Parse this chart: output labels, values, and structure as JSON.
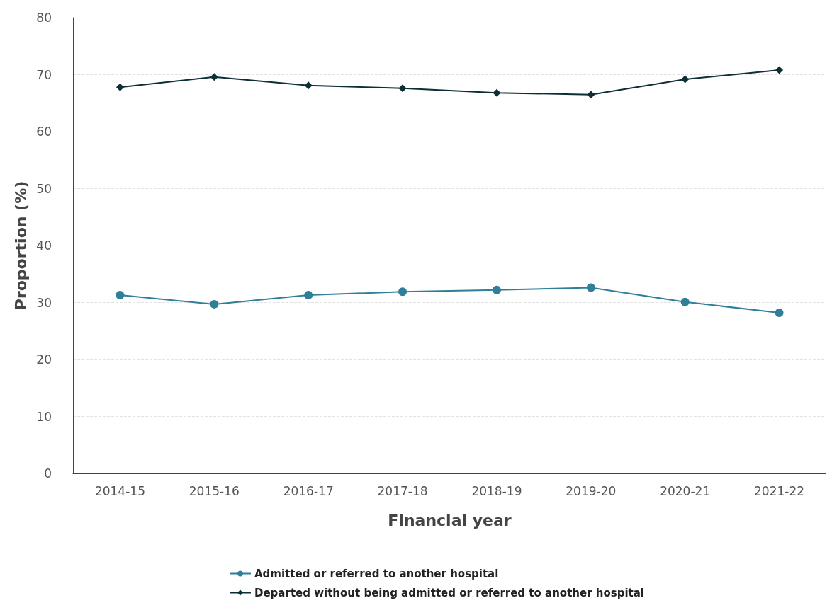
{
  "chart_data": {
    "type": "line",
    "xlabel": "Financial year",
    "ylabel": "Proportion (%)",
    "categories": [
      "2014-15",
      "2015-16",
      "2016-17",
      "2017-18",
      "2018-19",
      "2019-20",
      "2020-21",
      "2021-22"
    ],
    "series": [
      {
        "name": "Admitted or referred to another hospital",
        "color": "#2e7f97",
        "marker": "circle",
        "values": [
          31.3,
          29.7,
          31.3,
          31.9,
          32.2,
          32.6,
          30.1,
          28.2
        ]
      },
      {
        "name": "Departed without being admitted or referred to another hospital",
        "color": "#0d2e35",
        "marker": "diamond",
        "values": [
          67.8,
          69.6,
          68.1,
          67.6,
          66.8,
          66.5,
          69.2,
          70.8
        ]
      }
    ],
    "ylim": [
      0,
      80
    ],
    "yticks": [
      0,
      10,
      20,
      30,
      40,
      50,
      60,
      70,
      80
    ],
    "grid": "y",
    "legend": "bottom",
    "line_style": "solid"
  }
}
